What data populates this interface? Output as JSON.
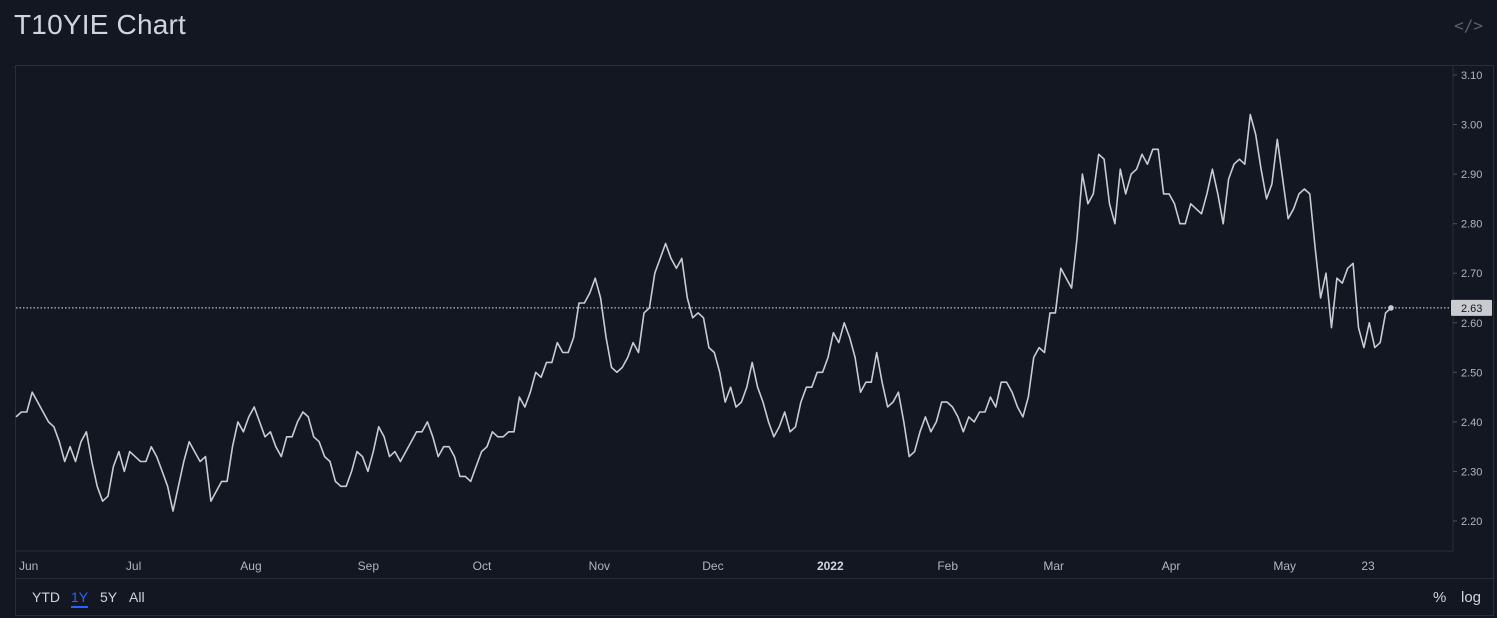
{
  "header": {
    "title": "T10YIE Chart",
    "embed_icon": "code-icon"
  },
  "toolbar": {
    "ranges": [
      "YTD",
      "1Y",
      "5Y",
      "All"
    ],
    "active_range": "1Y",
    "percent_label": "%",
    "log_label": "log"
  },
  "colors": {
    "background": "#131722",
    "line": "#c9cbd1",
    "grid_border": "#2a2e39",
    "active": "#2962ff",
    "price_label_bg": "#c9cbd1"
  },
  "chart_data": {
    "type": "line",
    "title": "T10YIE Chart",
    "xlabel": "",
    "ylabel": "",
    "ylim": [
      2.15,
      3.12
    ],
    "y_ticks": [
      "3.10",
      "3.00",
      "2.90",
      "2.80",
      "2.70",
      "2.60",
      "2.50",
      "2.40",
      "2.30",
      "2.20"
    ],
    "x_ticks": [
      "Jun",
      "Jul",
      "Aug",
      "Sep",
      "Oct",
      "Nov",
      "Dec",
      "2022",
      "Feb",
      "Mar",
      "Apr",
      "May",
      "23"
    ],
    "x_tick_dates": [
      "2021-06-01",
      "2021-07-01",
      "2021-08-01",
      "2021-09-01",
      "2021-10-01",
      "2021-11-01",
      "2021-12-01",
      "2022-01-01",
      "2022-02-01",
      "2022-03-01",
      "2022-04-01",
      "2022-05-01",
      "2022-05-23"
    ],
    "last_value_label": "2.63",
    "last_value": 2.63,
    "series": [
      {
        "values": [
          2.41,
          2.42,
          2.42,
          2.46,
          2.44,
          2.42,
          2.4,
          2.39,
          2.36,
          2.32,
          2.35,
          2.32,
          2.36,
          2.38,
          2.32,
          2.27,
          2.24,
          2.25,
          2.31,
          2.34,
          2.3,
          2.34,
          2.33,
          2.32,
          2.32,
          2.35,
          2.33,
          2.3,
          2.27,
          2.22,
          2.27,
          2.32,
          2.36,
          2.34,
          2.32,
          2.33,
          2.24,
          2.26,
          2.28,
          2.28,
          2.35,
          2.4,
          2.38,
          2.41,
          2.43,
          2.4,
          2.37,
          2.38,
          2.35,
          2.33,
          2.37,
          2.37,
          2.4,
          2.42,
          2.41,
          2.37,
          2.36,
          2.33,
          2.32,
          2.28,
          2.27,
          2.27,
          2.3,
          2.34,
          2.33,
          2.3,
          2.34,
          2.39,
          2.37,
          2.33,
          2.34,
          2.32,
          2.34,
          2.36,
          2.38,
          2.38,
          2.4,
          2.37,
          2.33,
          2.35,
          2.35,
          2.33,
          2.29,
          2.29,
          2.28,
          2.31,
          2.34,
          2.35,
          2.38,
          2.37,
          2.37,
          2.38,
          2.38,
          2.45,
          2.43,
          2.46,
          2.5,
          2.49,
          2.52,
          2.52,
          2.56,
          2.54,
          2.54,
          2.57,
          2.64,
          2.64,
          2.66,
          2.69,
          2.65,
          2.57,
          2.51,
          2.5,
          2.51,
          2.53,
          2.56,
          2.54,
          2.62,
          2.63,
          2.7,
          2.73,
          2.76,
          2.73,
          2.71,
          2.73,
          2.65,
          2.61,
          2.62,
          2.61,
          2.55,
          2.54,
          2.5,
          2.44,
          2.47,
          2.43,
          2.44,
          2.47,
          2.52,
          2.47,
          2.44,
          2.4,
          2.37,
          2.39,
          2.42,
          2.38,
          2.39,
          2.44,
          2.47,
          2.47,
          2.5,
          2.5,
          2.53,
          2.58,
          2.56,
          2.6,
          2.57,
          2.53,
          2.46,
          2.48,
          2.48,
          2.54,
          2.48,
          2.43,
          2.44,
          2.46,
          2.4,
          2.33,
          2.34,
          2.38,
          2.41,
          2.38,
          2.4,
          2.44,
          2.44,
          2.43,
          2.41,
          2.38,
          2.41,
          2.4,
          2.42,
          2.42,
          2.45,
          2.43,
          2.48,
          2.48,
          2.46,
          2.43,
          2.41,
          2.45,
          2.53,
          2.55,
          2.54,
          2.62,
          2.62,
          2.71,
          2.69,
          2.67,
          2.77,
          2.9,
          2.84,
          2.86,
          2.94,
          2.93,
          2.84,
          2.8,
          2.91,
          2.86,
          2.9,
          2.91,
          2.94,
          2.92,
          2.95,
          2.95,
          2.86,
          2.86,
          2.84,
          2.8,
          2.8,
          2.84,
          2.83,
          2.82,
          2.86,
          2.91,
          2.86,
          2.8,
          2.89,
          2.92,
          2.93,
          2.92,
          3.02,
          2.98,
          2.91,
          2.85,
          2.88,
          2.97,
          2.89,
          2.81,
          2.83,
          2.86,
          2.87,
          2.86,
          2.75,
          2.65,
          2.7,
          2.59,
          2.69,
          2.68,
          2.71,
          2.72,
          2.59,
          2.55,
          2.6,
          2.55,
          2.56,
          2.62,
          2.63
        ]
      }
    ]
  }
}
